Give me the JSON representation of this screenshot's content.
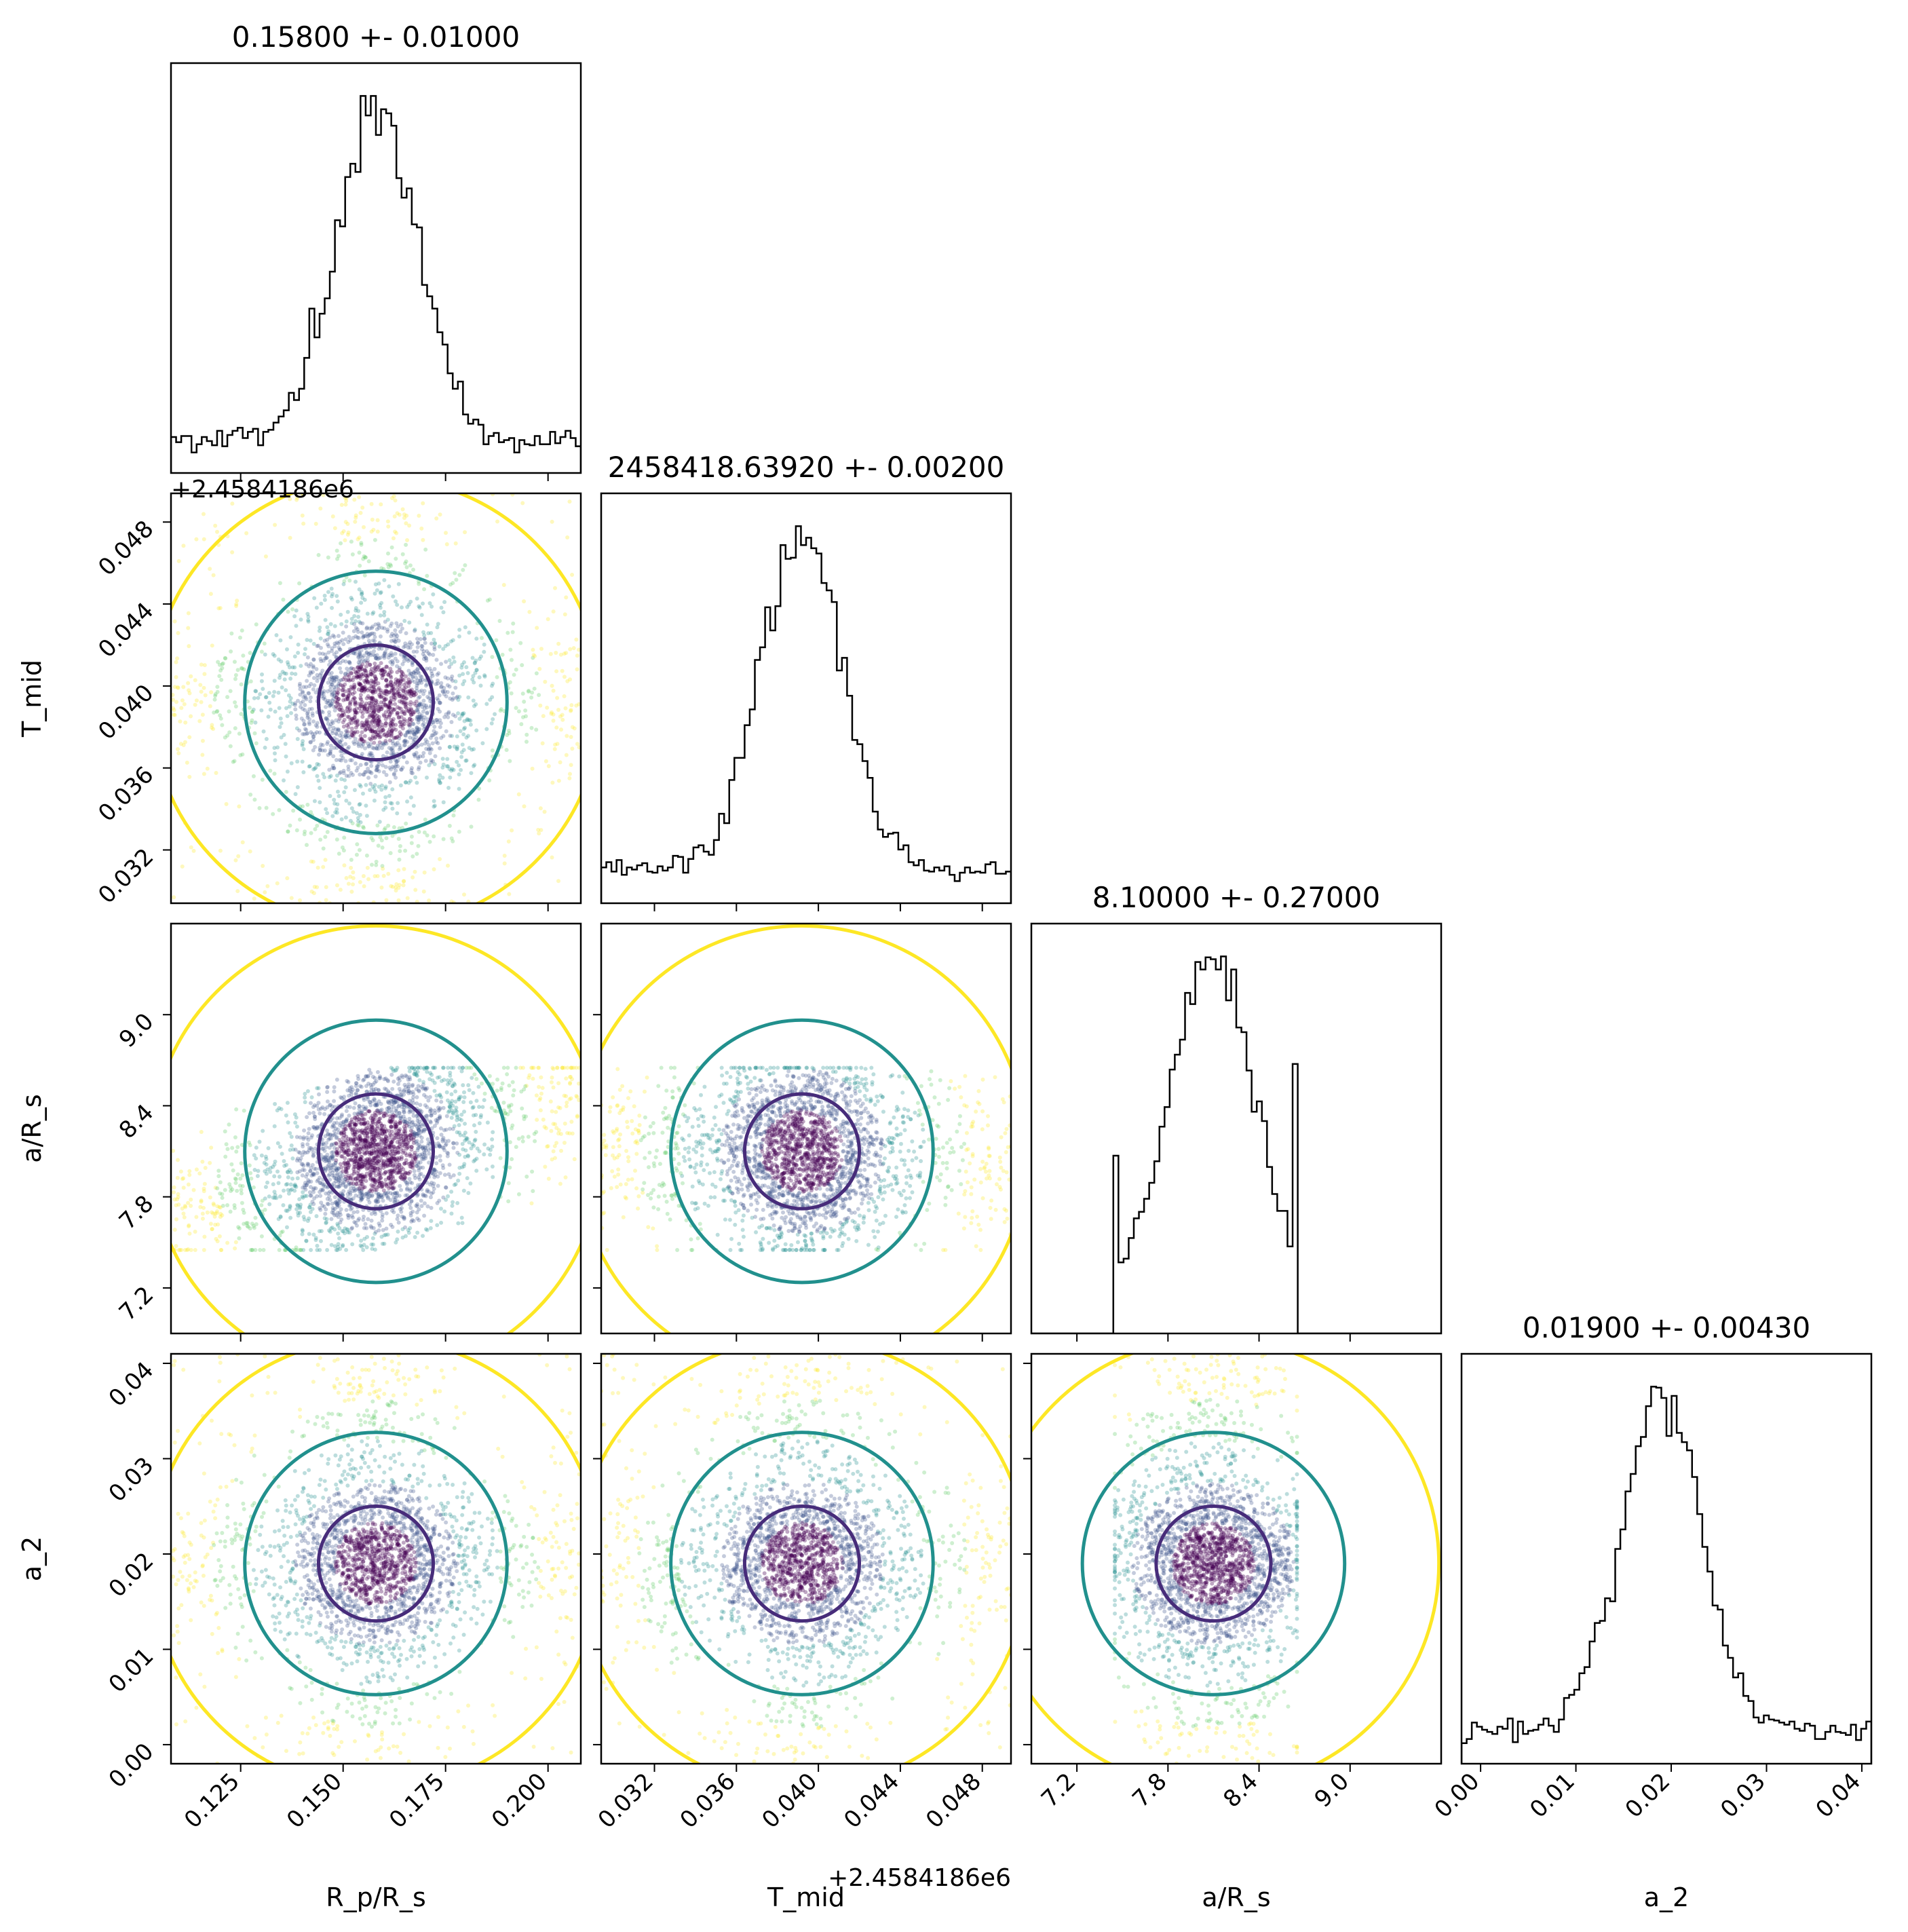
{
  "chart_data": {
    "type": "corner",
    "parameters": [
      {
        "key": "rp",
        "axis_label": "R_p/R_s",
        "title": "0.15800 +- 0.01000",
        "range": [
          0.108,
          0.208
        ],
        "ticks": [
          "0.125",
          "0.150",
          "0.175",
          "0.200"
        ],
        "mean": 0.158,
        "sigma": 0.01,
        "x_offset_text": ""
      },
      {
        "key": "tmid",
        "axis_label": "T_mid",
        "title": "2458418.63920 +- 0.00200",
        "range": [
          0.0294,
          0.0494
        ],
        "ticks": [
          "0.032",
          "0.036",
          "0.040",
          "0.044",
          "0.048"
        ],
        "mean": 0.0392,
        "sigma": 0.002,
        "offset_text": "+2.4584186e6"
      },
      {
        "key": "ars",
        "axis_label": "a/R_s",
        "title": "8.10000 +- 0.27000",
        "range": [
          6.9,
          9.6
        ],
        "ticks": [
          "7.2",
          "7.8",
          "8.4",
          "9.0"
        ],
        "mean": 8.1,
        "sigma": 0.27,
        "support": [
          7.45,
          8.65
        ]
      },
      {
        "key": "a2",
        "axis_label": "a_2",
        "title": "0.01900 +- 0.00430",
        "range": [
          -0.002,
          0.041
        ],
        "ticks": [
          "0.00",
          "0.01",
          "0.02",
          "0.03",
          "0.04"
        ],
        "mean": 0.019,
        "sigma": 0.0043
      }
    ],
    "offset_label": "+2.4584186e6",
    "contour_levels": [
      "inner",
      "middle",
      "outer"
    ],
    "histogram_color": "#000000"
  },
  "colors": {
    "inner": "#472c7a",
    "middle": "#21908d",
    "outer": "#fde725",
    "scatter": [
      "#440154",
      "#3b528b",
      "#21908d",
      "#5ec962",
      "#fde725"
    ]
  }
}
